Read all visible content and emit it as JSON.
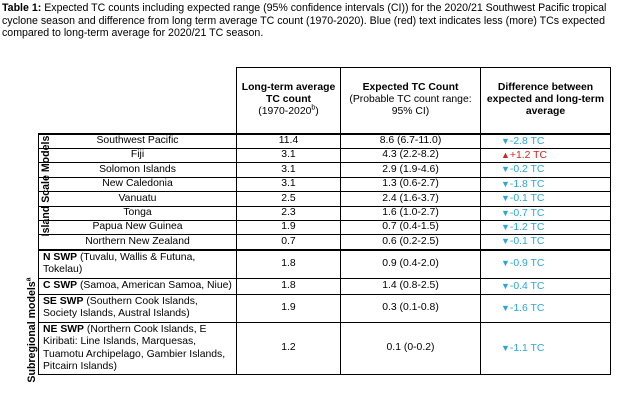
{
  "caption": {
    "label": "Table 1:",
    "text": "Expected TC counts including expected range (95% confidence intervals (CI)) for the 2020/21 Southwest Pacific tropical cyclone season and difference from long term average TC count (1970-2020). Blue (red) text indicates less (more) TCs expected compared to long-term average for 2020/21 TC season."
  },
  "headers": {
    "col2": "Long-term average TC count",
    "col2_sub": "(1970-2020",
    "col2_sup": "b",
    "col2_end": ")",
    "col3": "Expected TC Count",
    "col3_sub": "(Probable TC count range: 95% CI)",
    "col4": "Difference between expected and long-term average"
  },
  "groups": {
    "island_scale": "Island Scale Models",
    "subregional": "Subregional models",
    "subregional_sup": "a"
  },
  "colors": {
    "less": "#2aa6d8",
    "more": "#d22222"
  },
  "island_rows": [
    {
      "name": "Southwest Pacific",
      "avg": "11.4",
      "expected": "8.6 (6.7-11.0)",
      "diff": "-2.8 TC",
      "dir": "down"
    },
    {
      "name": "Fiji",
      "avg": "3.1",
      "expected": "4.3 (2.2-8.2)",
      "diff": "+1.2 TC",
      "dir": "up"
    },
    {
      "name": "Solomon Islands",
      "avg": "3.1",
      "expected": "2.9 (1.9-4.6)",
      "diff": "-0.2 TC",
      "dir": "down"
    },
    {
      "name": "New Caledonia",
      "avg": "3.1",
      "expected": "1.3 (0.6-2.7)",
      "diff": "-1.8 TC",
      "dir": "down"
    },
    {
      "name": "Vanuatu",
      "avg": "2.5",
      "expected": "2.4 (1.6-3.7)",
      "diff": "-0.1 TC",
      "dir": "down"
    },
    {
      "name": "Tonga",
      "avg": "2.3",
      "expected": "1.6 (1.0-2.7)",
      "diff": "-0.7 TC",
      "dir": "down"
    },
    {
      "name": "Papua New Guinea",
      "avg": "1.9",
      "expected": "0.7 (0.4-1.5)",
      "diff": "-1.2 TC",
      "dir": "down"
    },
    {
      "name": "Northern New Zealand",
      "avg": "0.7",
      "expected": "0.6 (0.2-2.5)",
      "diff": "-0.1 TC",
      "dir": "down"
    }
  ],
  "sub_rows": [
    {
      "code": "N SWP",
      "desc": "(Tuvalu, Wallis & Futuna, Tokelau)",
      "avg": "1.8",
      "expected": "0.9 (0.4-2.0)",
      "diff": "-0.9 TC",
      "dir": "down"
    },
    {
      "code": "C SWP",
      "desc": "(Samoa, American Samoa, Niue)",
      "avg": "1.8",
      "expected": "1.4 (0.8-2.5)",
      "diff": "-0.4 TC",
      "dir": "down"
    },
    {
      "code": "SE SWP",
      "desc": "(Southern Cook Islands, Society Islands, Austral Islands)",
      "avg": "1.9",
      "expected": "0.3 (0.1-0.8)",
      "diff": "-1.6 TC",
      "dir": "down"
    },
    {
      "code": "NE SWP",
      "desc": "(Northern Cook Islands, E Kiribati: Line Islands, Marquesas, Tuamotu Archipelago, Gambier Islands, Pitcairn Islands)",
      "avg": "1.2",
      "expected": "0.1 (0-0.2)",
      "diff": "-1.1 TC",
      "dir": "down"
    }
  ]
}
